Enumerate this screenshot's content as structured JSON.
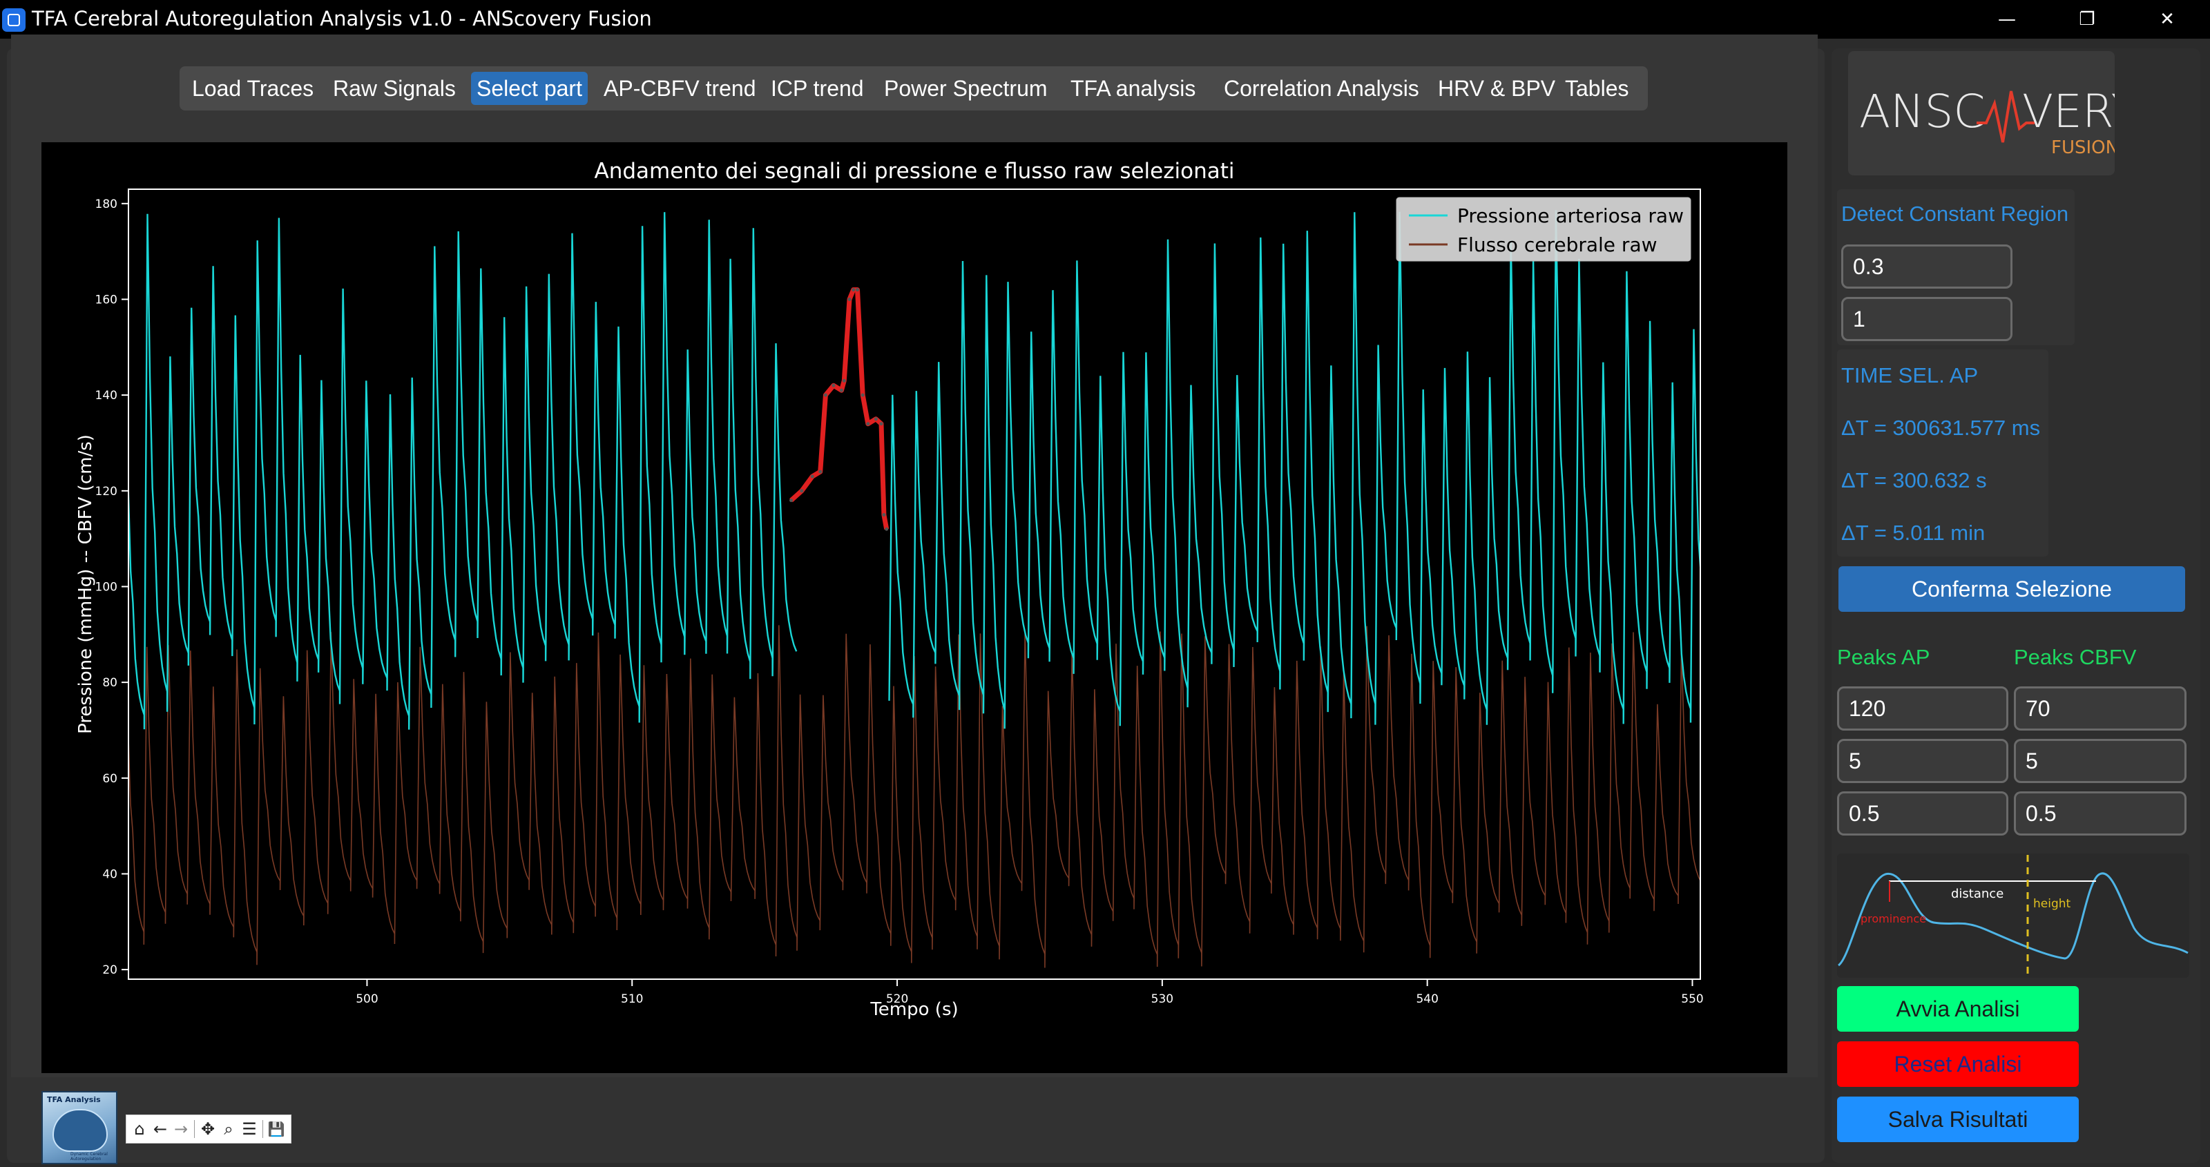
{
  "window": {
    "title": "TFA Cerebral Autoregulation Analysis v1.0 - ANScovery Fusion",
    "minimize": "—",
    "restore": "❐",
    "close": "✕"
  },
  "tabs": [
    {
      "label": "Load Traces"
    },
    {
      "label": "Raw Signals"
    },
    {
      "label": "Select part",
      "active": true
    },
    {
      "label": "AP-CBFV trend"
    },
    {
      "label": "ICP trend"
    },
    {
      "label": "Power Spectrum"
    },
    {
      "label": "TFA analysis"
    },
    {
      "label": "Correlation Analysis"
    },
    {
      "label": "HRV & BPV"
    },
    {
      "label": "Tables"
    }
  ],
  "chart_data": {
    "type": "line",
    "title": "Andamento dei segnali di pressione e flusso raw selezionati",
    "xlabel": "Tempo (s)",
    "ylabel": "Pressione (mmHg) -- CBFV (cm/s)",
    "xlim": [
      491,
      550.3
    ],
    "ylim": [
      18,
      183
    ],
    "xticks": [
      500,
      510,
      520,
      530,
      540,
      550
    ],
    "yticks": [
      20,
      40,
      60,
      80,
      100,
      120,
      140,
      160,
      180
    ],
    "grid": false,
    "legend_position": "top-right",
    "series": [
      {
        "name": "Pressione arteriosa raw",
        "color": "#19d6d6",
        "beat_peak_range": [
          140,
          180
        ],
        "beat_trough_range": [
          70,
          90
        ],
        "beat_period_s": 0.85
      },
      {
        "name": "Flusso cerebrale raw",
        "color": "#7a3a25",
        "beat_peak_range": [
          75,
          92
        ],
        "beat_trough_range": [
          20,
          38
        ],
        "beat_period_s": 0.85
      }
    ],
    "selection": {
      "color": "#e02020",
      "x": [
        516.0,
        516.4,
        516.8,
        517.1,
        517.3,
        517.6,
        517.9,
        518.0,
        518.2,
        518.35,
        518.5,
        518.7,
        518.9,
        519.2,
        519.4,
        519.5,
        519.6
      ],
      "y": [
        118,
        120,
        123,
        124,
        140,
        142,
        141,
        143,
        160,
        162,
        162,
        140,
        134,
        135,
        134,
        115,
        112
      ]
    }
  },
  "toolbar": {
    "home": "⌂",
    "back": "←",
    "forward": "→",
    "pan": "✥",
    "zoom": "⌕",
    "configure": "☰",
    "save": "💾"
  },
  "thumbnail": {
    "title": "TFA Analysis",
    "subtitle": "Dynamic Cerebral Autoregulation"
  },
  "logo": {
    "text_left": "ANSC",
    "text_right": "VERY",
    "sub": "FUSION"
  },
  "detect": {
    "label": "Detect Constant Region",
    "value1": "0.3",
    "value2": "1"
  },
  "time_sel": {
    "label": "TIME SEL. AP",
    "dt_ms": "ΔT = 300631.577 ms",
    "dt_s": "ΔT = 300.632 s",
    "dt_min": "ΔT = 5.011 min"
  },
  "buttons": {
    "confirm": "Conferma Selezione",
    "start": "Avvia Analisi",
    "reset": "Reset Analisi",
    "save": "Salva Risultati"
  },
  "peaks": {
    "ap_label": "Peaks AP",
    "cbfv_label": "Peaks CBFV",
    "ap_values": [
      "120",
      "5",
      "0.5"
    ],
    "cbfv_values": [
      "70",
      "5",
      "0.5"
    ]
  },
  "diagram": {
    "distance": "distance",
    "height": "height",
    "prominence": "prominence"
  },
  "colors": {
    "accent_blue": "#2f8fe0",
    "green_label": "#1ed760",
    "start_button": "#00ff7f",
    "reset_button": "#ff0000",
    "save_button": "#1e90ff",
    "confirm_button": "#2a6fb8"
  }
}
